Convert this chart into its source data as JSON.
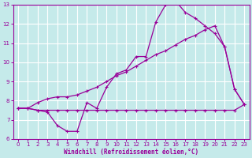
{
  "xlabel": "Windchill (Refroidissement éolien,°C)",
  "bg_color": "#c5eaea",
  "grid_color": "#ffffff",
  "line_color": "#990099",
  "xlim": [
    -0.5,
    23.5
  ],
  "ylim": [
    6,
    13
  ],
  "xticks": [
    0,
    1,
    2,
    3,
    4,
    5,
    6,
    7,
    8,
    9,
    10,
    11,
    12,
    13,
    14,
    15,
    16,
    17,
    18,
    19,
    20,
    21,
    22,
    23
  ],
  "yticks": [
    6,
    7,
    8,
    9,
    10,
    11,
    12,
    13
  ],
  "line1_x": [
    0,
    1,
    2,
    3,
    4,
    5,
    6,
    7,
    8,
    9,
    10,
    11,
    12,
    13,
    14,
    15,
    16,
    17,
    18,
    19,
    20,
    21,
    22,
    23
  ],
  "line1_y": [
    7.6,
    7.6,
    7.5,
    7.5,
    7.5,
    7.5,
    7.5,
    7.5,
    7.5,
    7.5,
    7.5,
    7.5,
    7.5,
    7.5,
    7.5,
    7.5,
    7.5,
    7.5,
    7.5,
    7.5,
    7.5,
    7.5,
    7.5,
    7.8
  ],
  "line2_x": [
    0,
    1,
    2,
    3,
    4,
    5,
    6,
    7,
    8,
    9,
    10,
    11,
    12,
    13,
    14,
    15,
    16,
    17,
    18,
    19,
    20,
    21,
    22,
    23
  ],
  "line2_y": [
    7.6,
    7.6,
    7.5,
    7.4,
    6.7,
    6.4,
    6.4,
    7.9,
    7.6,
    8.7,
    9.4,
    9.6,
    10.3,
    10.3,
    12.1,
    13.0,
    13.2,
    12.6,
    12.3,
    11.9,
    11.5,
    10.8,
    8.6,
    7.8
  ],
  "line3_x": [
    0,
    1,
    2,
    3,
    4,
    5,
    6,
    7,
    8,
    9,
    10,
    11,
    12,
    13,
    14,
    15,
    16,
    17,
    18,
    19,
    20,
    21,
    22,
    23
  ],
  "line3_y": [
    7.6,
    7.6,
    7.9,
    8.1,
    8.2,
    8.2,
    8.3,
    8.5,
    8.7,
    9.0,
    9.3,
    9.5,
    9.8,
    10.1,
    10.4,
    10.6,
    10.9,
    11.2,
    11.4,
    11.7,
    11.9,
    10.8,
    8.6,
    7.8
  ]
}
